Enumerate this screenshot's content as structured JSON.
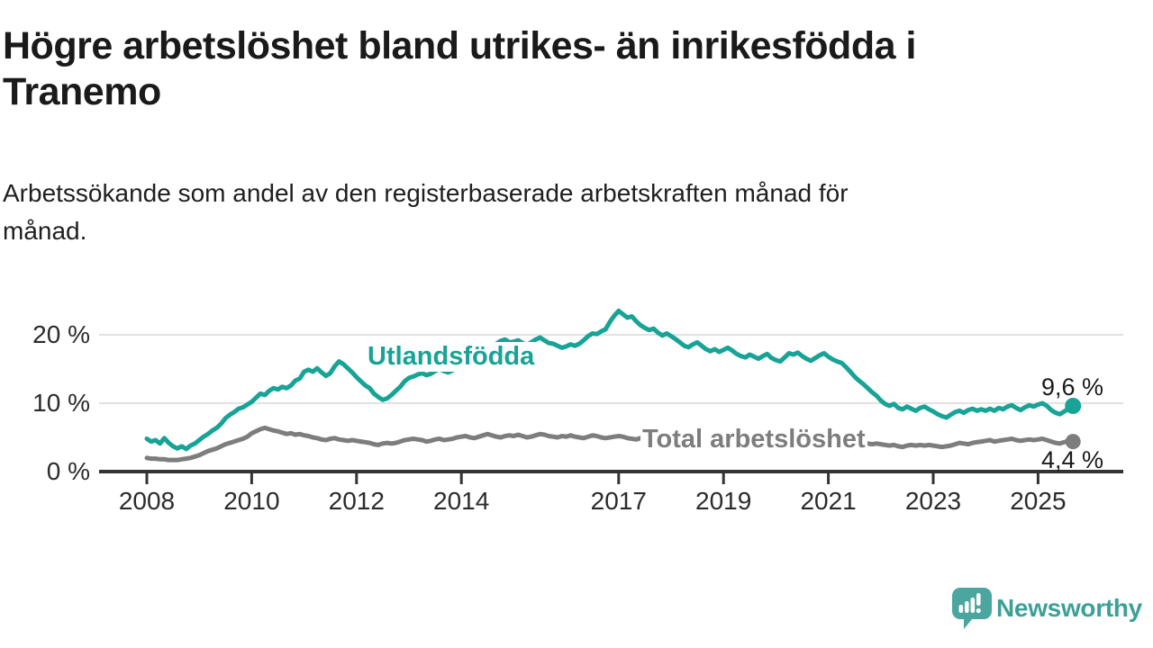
{
  "title_lines": [
    "Högre arbetslöshet bland utrikes- än inrikesfödda i",
    "Tranemo"
  ],
  "subtitle_lines": [
    "Arbetssökande som andel av den registerbaserade arbetskraften månad för",
    "månad."
  ],
  "series_labels": {
    "utlandsfodda": "Utlandsfödda",
    "total": "Total arbetslöshet"
  },
  "end_labels": {
    "utlandsfodda": "9,6 %",
    "total": "4,4 %"
  },
  "logo": {
    "text": "Newsworthy",
    "bubble_color": "#4aa69e",
    "text_color": "#3da096"
  },
  "chart_data": {
    "type": "line",
    "title": "Högre arbetslöshet bland utrikes- än inrikesfödda i Tranemo",
    "subtitle": "Arbetssökande som andel av den registerbaserade arbetskraften månad för månad.",
    "x_unit": "month",
    "x_start_year": 2008,
    "x_end_label": "2025-09",
    "ylim": [
      0,
      25
    ],
    "grid": true,
    "grid_color": "#d8d8d8",
    "axis_color": "#333333",
    "yticks": [
      {
        "value": 0,
        "label": "0 %"
      },
      {
        "value": 10,
        "label": "10 %"
      },
      {
        "value": 20,
        "label": "20 %"
      }
    ],
    "xticks": [
      {
        "value": 2008,
        "label": "2008"
      },
      {
        "value": 2010,
        "label": "2010"
      },
      {
        "value": 2012,
        "label": "2012"
      },
      {
        "value": 2014,
        "label": "2014"
      },
      {
        "value": 2017,
        "label": "2017"
      },
      {
        "value": 2019,
        "label": "2019"
      },
      {
        "value": 2021,
        "label": "2021"
      },
      {
        "value": 2023,
        "label": "2023"
      },
      {
        "value": 2025,
        "label": "2025"
      }
    ],
    "series": [
      {
        "name": "Utlandsfödda",
        "color": "#17a396",
        "last_value_label": "9,6 %",
        "values": [
          4.8,
          4.4,
          4.6,
          4.1,
          4.9,
          4.2,
          3.7,
          3.4,
          3.7,
          3.3,
          3.8,
          4.1,
          4.6,
          5.1,
          5.5,
          6.0,
          6.4,
          7.0,
          7.8,
          8.3,
          8.7,
          9.2,
          9.4,
          9.8,
          10.2,
          10.8,
          11.4,
          11.2,
          11.8,
          12.2,
          12.0,
          12.4,
          12.2,
          12.6,
          13.3,
          13.6,
          14.6,
          14.9,
          14.6,
          15.1,
          14.5,
          14.0,
          14.4,
          15.4,
          16.1,
          15.7,
          15.1,
          14.5,
          13.8,
          13.2,
          12.6,
          12.2,
          11.4,
          10.9,
          10.5,
          10.7,
          11.2,
          11.8,
          12.4,
          13.2,
          13.7,
          13.9,
          14.2,
          14.4,
          14.1,
          14.3,
          14.7,
          15.0,
          14.7,
          14.5,
          14.8,
          15.1,
          15.4,
          15.8,
          16.1,
          16.4,
          16.8,
          17.2,
          17.8,
          18.3,
          18.7,
          19.1,
          19.3,
          18.9,
          19.0,
          19.2,
          18.8,
          18.5,
          18.9,
          19.3,
          19.6,
          19.2,
          18.8,
          18.7,
          18.4,
          18.1,
          18.3,
          18.6,
          18.4,
          18.7,
          19.2,
          19.8,
          20.2,
          20.1,
          20.5,
          20.8,
          21.9,
          22.8,
          23.5,
          23.0,
          22.5,
          22.7,
          22.0,
          21.4,
          21.0,
          20.7,
          20.9,
          20.3,
          19.9,
          20.2,
          19.8,
          19.4,
          18.9,
          18.4,
          18.2,
          18.6,
          18.9,
          18.4,
          17.9,
          17.6,
          17.9,
          17.5,
          17.8,
          18.1,
          17.7,
          17.2,
          16.9,
          16.7,
          17.1,
          16.8,
          16.5,
          16.9,
          17.2,
          16.6,
          16.3,
          16.1,
          16.7,
          17.3,
          17.1,
          17.4,
          16.9,
          16.5,
          16.2,
          16.6,
          17.0,
          17.3,
          16.8,
          16.4,
          16.1,
          15.9,
          15.3,
          14.6,
          13.9,
          13.3,
          12.8,
          12.2,
          11.6,
          11.1,
          10.4,
          9.9,
          9.6,
          9.9,
          9.3,
          9.1,
          9.5,
          9.2,
          8.9,
          9.3,
          9.5,
          9.1,
          8.8,
          8.4,
          8.1,
          7.9,
          8.3,
          8.7,
          8.9,
          8.6,
          9.0,
          9.2,
          8.9,
          9.1,
          8.9,
          9.2,
          8.9,
          9.3,
          9.1,
          9.5,
          9.7,
          9.3,
          9.0,
          9.4,
          9.7,
          9.5,
          9.8,
          10.0,
          9.6,
          9.0,
          8.6,
          8.4,
          8.8,
          9.2,
          9.6
        ]
      },
      {
        "name": "Total arbetslöshet",
        "color": "#7d7d7d",
        "last_value_label": "4,4 %",
        "values": [
          2.0,
          1.9,
          1.9,
          1.8,
          1.8,
          1.7,
          1.7,
          1.7,
          1.8,
          1.9,
          2.0,
          2.2,
          2.4,
          2.7,
          3.0,
          3.2,
          3.4,
          3.7,
          4.0,
          4.2,
          4.4,
          4.6,
          4.8,
          5.1,
          5.6,
          5.9,
          6.2,
          6.4,
          6.2,
          6.0,
          5.9,
          5.7,
          5.5,
          5.6,
          5.4,
          5.5,
          5.3,
          5.2,
          5.0,
          4.9,
          4.7,
          4.6,
          4.8,
          4.9,
          4.7,
          4.6,
          4.5,
          4.6,
          4.5,
          4.4,
          4.3,
          4.2,
          4.0,
          3.9,
          4.1,
          4.2,
          4.1,
          4.2,
          4.4,
          4.6,
          4.7,
          4.8,
          4.7,
          4.6,
          4.4,
          4.5,
          4.7,
          4.8,
          4.6,
          4.7,
          4.8,
          5.0,
          5.1,
          5.2,
          5.0,
          4.9,
          5.1,
          5.3,
          5.5,
          5.3,
          5.1,
          5.0,
          5.2,
          5.3,
          5.2,
          5.4,
          5.2,
          5.0,
          5.1,
          5.3,
          5.5,
          5.4,
          5.2,
          5.1,
          5.0,
          5.2,
          5.1,
          5.3,
          5.1,
          5.0,
          4.9,
          5.1,
          5.3,
          5.2,
          5.0,
          4.9,
          5.0,
          5.1,
          5.2,
          5.1,
          4.9,
          4.8,
          4.7,
          4.9,
          5.1,
          5.0,
          4.8,
          4.7,
          4.6,
          4.8,
          4.9,
          4.8,
          4.6,
          4.5,
          4.4,
          4.6,
          4.8,
          4.7,
          4.5,
          4.4,
          4.5,
          4.6,
          4.7,
          4.6,
          4.5,
          4.4,
          4.3,
          4.5,
          4.7,
          4.6,
          4.4,
          4.5,
          4.6,
          4.7,
          4.6,
          4.5,
          4.7,
          5.0,
          5.2,
          5.3,
          5.2,
          5.0,
          4.9,
          4.8,
          4.7,
          4.8,
          4.9,
          4.8,
          4.7,
          4.6,
          4.4,
          4.3,
          4.5,
          4.4,
          4.2,
          4.1,
          4.0,
          4.1,
          4.0,
          3.9,
          3.8,
          3.9,
          3.7,
          3.6,
          3.8,
          3.9,
          3.8,
          3.9,
          3.8,
          3.9,
          3.8,
          3.7,
          3.6,
          3.7,
          3.8,
          4.0,
          4.2,
          4.1,
          4.0,
          4.2,
          4.3,
          4.4,
          4.5,
          4.6,
          4.4,
          4.5,
          4.6,
          4.7,
          4.8,
          4.6,
          4.5,
          4.6,
          4.7,
          4.6,
          4.7,
          4.8,
          4.6,
          4.4,
          4.2,
          4.1,
          4.3,
          4.5,
          4.4
        ]
      }
    ]
  }
}
